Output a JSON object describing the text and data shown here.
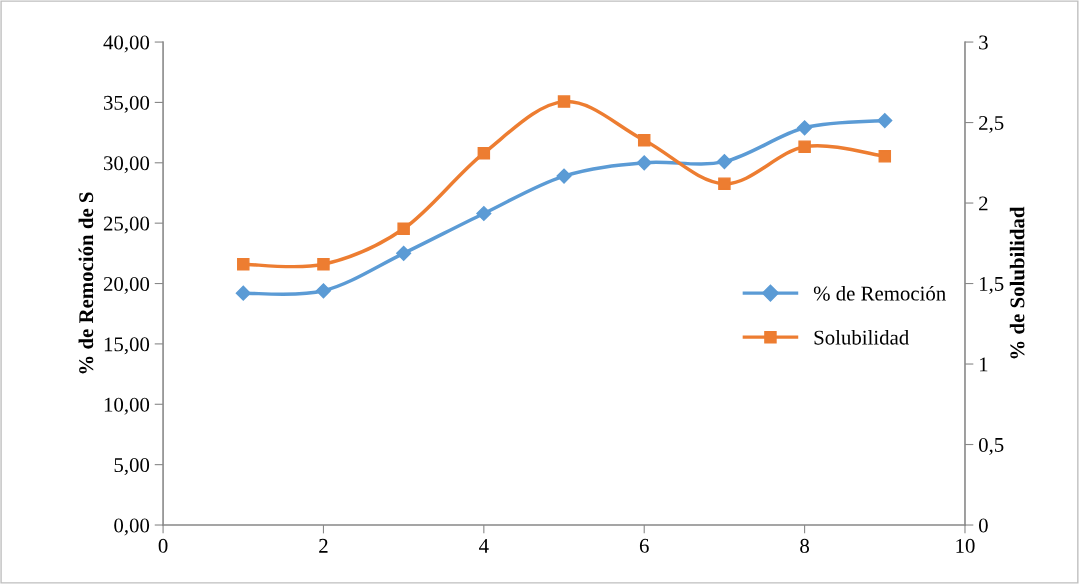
{
  "chart_data": {
    "type": "line",
    "ylabel": "% de Remoción de S",
    "y2label": "% de Solubilidad",
    "x": [
      1,
      2,
      3,
      4,
      5,
      6,
      7,
      8,
      9
    ],
    "series": [
      {
        "name": "% de Remoción",
        "color": "#5b9bd5",
        "marker": "diamond",
        "values": [
          19.2,
          19.4,
          22.5,
          25.8,
          28.9,
          30.0,
          30.1,
          32.9,
          33.5
        ]
      },
      {
        "name": "Solubilidad",
        "color": "#ed7d31",
        "marker": "square",
        "axis": "y2",
        "values": [
          1.62,
          1.62,
          1.84,
          2.31,
          2.63,
          2.39,
          2.12,
          2.35,
          2.29
        ]
      }
    ],
    "xlim": [
      0,
      10
    ],
    "xticks": [
      0,
      2,
      4,
      6,
      8,
      10
    ],
    "ylim": [
      0,
      40
    ],
    "yticks": [
      {
        "value": 0,
        "label": "0,00"
      },
      {
        "value": 5,
        "label": "5,00"
      },
      {
        "value": 10,
        "label": "10,00"
      },
      {
        "value": 15,
        "label": "15,00"
      },
      {
        "value": 20,
        "label": "20,00"
      },
      {
        "value": 25,
        "label": "25,00"
      },
      {
        "value": 30,
        "label": "30,00"
      },
      {
        "value": 35,
        "label": "35,00"
      },
      {
        "value": 40,
        "label": "40,00"
      }
    ],
    "y2lim": [
      0,
      3
    ],
    "y2ticks": [
      0,
      {
        "value": 0.5,
        "label": "0,5"
      },
      1,
      {
        "value": 1.5,
        "label": "1,5"
      },
      2,
      {
        "value": 2.5,
        "label": "2,5"
      },
      3
    ],
    "grid": false,
    "legend": "right",
    "line_style": "solid"
  }
}
